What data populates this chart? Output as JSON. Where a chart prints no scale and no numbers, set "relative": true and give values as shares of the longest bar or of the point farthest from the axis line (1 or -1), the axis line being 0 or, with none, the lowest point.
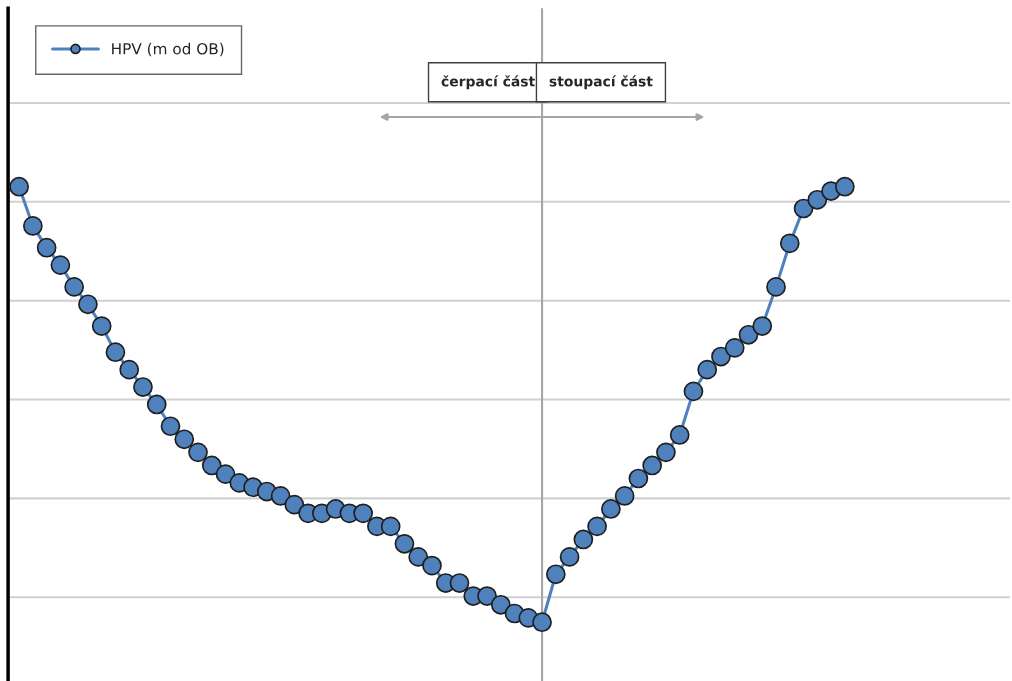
{
  "chart_data": {
    "type": "line",
    "relative": true,
    "grid": "y",
    "legend": "top left",
    "marker": "circle",
    "line_style": "solid",
    "categories": [
      null,
      null,
      null,
      null,
      null,
      null,
      null,
      null,
      null,
      null,
      null,
      null,
      null,
      null,
      null,
      null,
      null,
      null,
      null,
      null,
      null,
      null,
      null,
      null,
      null,
      null,
      null,
      null,
      null,
      null,
      null,
      null,
      null,
      null,
      null,
      null,
      null,
      null,
      null,
      null,
      null,
      null,
      null,
      null,
      null,
      null,
      null,
      null,
      null,
      null,
      null,
      null,
      null,
      null,
      null,
      null,
      null,
      null,
      null,
      null,
      null
    ],
    "series": [
      {
        "name": "HPV (m od OB)",
        "color": "#4f81bd",
        "values": [
          1.0,
          0.91,
          0.86,
          0.82,
          0.77,
          0.73,
          0.68,
          0.62,
          0.58,
          0.54,
          0.5,
          0.45,
          0.42,
          0.39,
          0.36,
          0.34,
          0.32,
          0.31,
          0.3,
          0.29,
          0.27,
          0.25,
          0.25,
          0.26,
          0.25,
          0.25,
          0.22,
          0.22,
          0.18,
          0.15,
          0.13,
          0.09,
          0.09,
          0.06,
          0.06,
          0.04,
          0.02,
          0.01,
          0.0,
          0.11,
          0.15,
          0.19,
          0.22,
          0.26,
          0.29,
          0.33,
          0.36,
          0.39,
          0.43,
          0.53,
          0.58,
          0.61,
          0.63,
          0.66,
          0.68,
          0.77,
          0.87,
          0.95,
          0.97,
          0.99,
          1.0
        ]
      }
    ],
    "annotations": [
      "čerpací část",
      "stoupací část"
    ]
  }
}
